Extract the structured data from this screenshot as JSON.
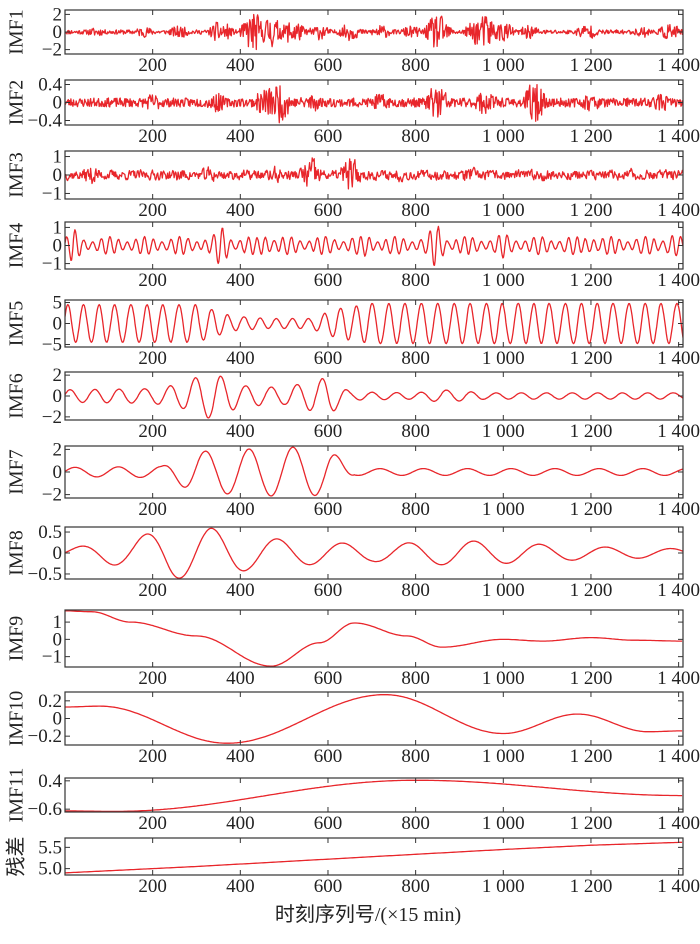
{
  "figure": {
    "xlabel": "时刻序列号/(×15 min)",
    "line_color": "#e8262b"
  },
  "chart_data": [
    {
      "type": "line",
      "ylabel": "IMF1",
      "xlim": [
        0,
        1410
      ],
      "ylim": [
        -2.5,
        2.5
      ],
      "xticks": [
        "200",
        "400",
        "600",
        "800",
        "1 000",
        "1 200",
        "1 400"
      ],
      "yticks": [
        {
          "v": 2,
          "label": "2"
        },
        {
          "v": 0,
          "label": "0"
        },
        {
          "v": -2,
          "label": "−2"
        }
      ],
      "signal": {
        "kind": "noise",
        "amp": 0.25,
        "seed": 11,
        "bursts": [
          [
            70,
            0.5
          ],
          [
            180,
            0.6
          ],
          [
            260,
            0.7
          ],
          [
            355,
            1.3
          ],
          [
            430,
            2.3
          ],
          [
            470,
            1.9
          ],
          [
            520,
            1.5
          ],
          [
            580,
            0.9
          ],
          [
            650,
            1.0
          ],
          [
            720,
            0.8
          ],
          [
            790,
            0.7
          ],
          [
            850,
            2.1
          ],
          [
            940,
            1.5
          ],
          [
            960,
            2.0
          ],
          [
            1000,
            1.2
          ],
          [
            1060,
            0.8
          ],
          [
            1190,
            0.9
          ],
          [
            1320,
            0.6
          ],
          [
            1380,
            1.0
          ]
        ]
      }
    },
    {
      "type": "line",
      "ylabel": "IMF2",
      "xlim": [
        0,
        1410
      ],
      "ylim": [
        -0.5,
        0.5
      ],
      "xticks": [
        "200",
        "400",
        "600",
        "800",
        "1 000",
        "1 200",
        "1 400"
      ],
      "yticks": [
        {
          "v": 0.4,
          "label": "0.4"
        },
        {
          "v": 0,
          "label": "0"
        },
        {
          "v": -0.4,
          "label": "−0.4"
        }
      ],
      "signal": {
        "kind": "noise",
        "amp": 0.1,
        "seed": 23,
        "bursts": [
          [
            200,
            0.2
          ],
          [
            345,
            0.22
          ],
          [
            460,
            0.38
          ],
          [
            490,
            0.45
          ],
          [
            560,
            0.25
          ],
          [
            720,
            0.2
          ],
          [
            850,
            0.45
          ],
          [
            960,
            0.3
          ],
          [
            1070,
            0.45
          ],
          [
            1200,
            0.2
          ],
          [
            1360,
            0.2
          ]
        ]
      }
    },
    {
      "type": "line",
      "ylabel": "IMF3",
      "xlim": [
        0,
        1410
      ],
      "ylim": [
        -1.3,
        1.3
      ],
      "xticks": [
        "200",
        "400",
        "600",
        "800",
        "1 000",
        "1 200",
        "1 400"
      ],
      "yticks": [
        {
          "v": 1,
          "label": "1"
        },
        {
          "v": 0,
          "label": "0"
        },
        {
          "v": -1,
          "label": "−1"
        }
      ],
      "signal": {
        "kind": "noise",
        "amp": 0.35,
        "seed": 37,
        "smooth": 0.35,
        "bursts": [
          [
            60,
            0.7
          ],
          [
            260,
            0.5
          ],
          [
            330,
            0.6
          ],
          [
            480,
            0.6
          ],
          [
            560,
            1.3
          ],
          [
            650,
            1.3
          ],
          [
            760,
            0.5
          ],
          [
            920,
            0.6
          ],
          [
            1100,
            0.5
          ],
          [
            1300,
            0.5
          ]
        ]
      }
    },
    {
      "type": "line",
      "ylabel": "IMF4",
      "xlim": [
        0,
        1410
      ],
      "ylim": [
        -1.3,
        1.3
      ],
      "xticks": [
        "200",
        "400",
        "600",
        "800",
        "1 000",
        "1 200",
        "1 400"
      ],
      "yticks": [
        {
          "v": 1,
          "label": "1"
        },
        {
          "v": 0,
          "label": "0"
        },
        {
          "v": -1,
          "label": "−1"
        }
      ],
      "signal": {
        "kind": "am",
        "period": 20,
        "amp": 0.5,
        "seed": 41,
        "bursts": [
          [
            20,
            0.9
          ],
          [
            360,
            1.2
          ],
          [
            460,
            0.9
          ],
          [
            690,
            0.7
          ],
          [
            850,
            1.3
          ],
          [
            1000,
            0.7
          ],
          [
            1200,
            0.8
          ],
          [
            1380,
            0.9
          ]
        ]
      }
    },
    {
      "type": "line",
      "ylabel": "IMF5",
      "xlim": [
        0,
        1410
      ],
      "ylim": [
        -5.6,
        5.6
      ],
      "xticks": [
        "200",
        "400",
        "600",
        "800",
        "1 000",
        "1 200",
        "1 400"
      ],
      "yticks": [
        {
          "v": 5,
          "label": "5"
        },
        {
          "v": 0,
          "label": "0"
        },
        {
          "v": -5,
          "label": "−5"
        }
      ],
      "signal": {
        "kind": "env",
        "period": 37,
        "seed": 53,
        "jitter": 0.3,
        "env": [
          [
            0,
            4.5
          ],
          [
            300,
            4.5
          ],
          [
            380,
            1.8
          ],
          [
            460,
            1.2
          ],
          [
            560,
            1.2
          ],
          [
            620,
            3.5
          ],
          [
            700,
            4.8
          ],
          [
            1410,
            4.8
          ]
        ]
      }
    },
    {
      "type": "line",
      "ylabel": "IMF6",
      "xlim": [
        0,
        1410
      ],
      "ylim": [
        -2.3,
        2.3
      ],
      "xticks": [
        "200",
        "400",
        "600",
        "800",
        "1 000",
        "1 200",
        "1 400"
      ],
      "yticks": [
        {
          "v": 2,
          "label": "2"
        },
        {
          "v": 0,
          "label": "0"
        },
        {
          "v": -2,
          "label": "−2"
        }
      ],
      "signal": {
        "kind": "env",
        "period": 58,
        "seed": 67,
        "jitter": 0.3,
        "env": [
          [
            0,
            0.6
          ],
          [
            200,
            0.7
          ],
          [
            270,
            1.2
          ],
          [
            310,
            2.0
          ],
          [
            340,
            2.2
          ],
          [
            400,
            1.0
          ],
          [
            500,
            0.8
          ],
          [
            600,
            1.8
          ],
          [
            650,
            0.4
          ],
          [
            800,
            0.3
          ],
          [
            860,
            0.6
          ],
          [
            960,
            0.3
          ],
          [
            1410,
            0.3
          ]
        ]
      }
    },
    {
      "type": "line",
      "ylabel": "IMF7",
      "xlim": [
        0,
        1410
      ],
      "ylim": [
        -2.3,
        2.3
      ],
      "xticks": [
        "200",
        "400",
        "600",
        "800",
        "1 000",
        "1 200",
        "1 400"
      ],
      "yticks": [
        {
          "v": 2,
          "label": "2"
        },
        {
          "v": 0,
          "label": "0"
        },
        {
          "v": -2,
          "label": "−2"
        }
      ],
      "signal": {
        "kind": "env",
        "period": 100,
        "seed": 79,
        "jitter": 0.15,
        "env": [
          [
            0,
            0.4
          ],
          [
            220,
            0.5
          ],
          [
            300,
            1.8
          ],
          [
            400,
            2.0
          ],
          [
            520,
            2.2
          ],
          [
            600,
            2.0
          ],
          [
            660,
            0.3
          ],
          [
            1410,
            0.3
          ]
        ]
      }
    },
    {
      "type": "line",
      "ylabel": "IMF8",
      "xlim": [
        0,
        1410
      ],
      "ylim": [
        -0.62,
        0.62
      ],
      "xticks": [
        "200",
        "400",
        "600",
        "800",
        "1 000",
        "1 200",
        "1 400"
      ],
      "yticks": [
        {
          "v": 0.5,
          "label": "0.5"
        },
        {
          "v": 0,
          "label": "0"
        },
        {
          "v": -0.5,
          "label": "−0.5"
        }
      ],
      "signal": {
        "kind": "env",
        "period": 150,
        "seed": 83,
        "jitter": 0.1,
        "env": [
          [
            0,
            0.1
          ],
          [
            150,
            0.35
          ],
          [
            240,
            0.6
          ],
          [
            330,
            0.6
          ],
          [
            420,
            0.4
          ],
          [
            520,
            0.3
          ],
          [
            700,
            0.2
          ],
          [
            900,
            0.3
          ],
          [
            1000,
            0.25
          ],
          [
            1200,
            0.15
          ],
          [
            1410,
            0.1
          ]
        ]
      }
    },
    {
      "type": "line",
      "ylabel": "IMF9",
      "xlim": [
        0,
        1410
      ],
      "ylim": [
        -1.6,
        1.7
      ],
      "xticks": [
        "200",
        "400",
        "600",
        "800",
        "1 000",
        "1 200",
        "1 400"
      ],
      "yticks": [
        {
          "v": 1,
          "label": "1"
        },
        {
          "v": 0,
          "label": "0"
        },
        {
          "v": -1,
          "label": "−1"
        }
      ],
      "signal": {
        "kind": "points",
        "interp": "cosine",
        "points": [
          [
            0,
            1.65
          ],
          [
            60,
            1.6
          ],
          [
            150,
            1.0
          ],
          [
            300,
            0.2
          ],
          [
            470,
            -1.55
          ],
          [
            580,
            -0.2
          ],
          [
            660,
            0.95
          ],
          [
            780,
            0.2
          ],
          [
            860,
            -0.45
          ],
          [
            1000,
            0.0
          ],
          [
            1090,
            -0.1
          ],
          [
            1200,
            0.1
          ],
          [
            1300,
            -0.05
          ],
          [
            1410,
            -0.1
          ]
        ]
      }
    },
    {
      "type": "line",
      "ylabel": "IMF10",
      "xlim": [
        0,
        1410
      ],
      "ylim": [
        -0.3,
        0.3
      ],
      "xticks": [
        "200",
        "400",
        "600",
        "800",
        "1 000",
        "1 200",
        "1 400"
      ],
      "yticks": [
        {
          "v": 0.2,
          "label": "0.2"
        },
        {
          "v": 0,
          "label": "0"
        },
        {
          "v": -0.2,
          "label": "−0.2"
        }
      ],
      "signal": {
        "kind": "points",
        "interp": "cosine",
        "points": [
          [
            0,
            0.13
          ],
          [
            80,
            0.14
          ],
          [
            370,
            -0.28
          ],
          [
            730,
            0.27
          ],
          [
            1000,
            -0.17
          ],
          [
            1170,
            0.05
          ],
          [
            1330,
            -0.15
          ],
          [
            1410,
            -0.14
          ]
        ]
      }
    },
    {
      "type": "line",
      "ylabel": "IMF11",
      "xlim": [
        0,
        1410
      ],
      "ylim": [
        -0.7,
        0.5
      ],
      "xticks": [
        "200",
        "400",
        "600",
        "800",
        "1 000",
        "1 200",
        "1 400"
      ],
      "yticks": [
        {
          "v": 0.4,
          "label": "0.4"
        },
        {
          "v": -0.6,
          "label": "−0.6"
        }
      ],
      "signal": {
        "kind": "points",
        "interp": "cosine",
        "points": [
          [
            0,
            -0.66
          ],
          [
            110,
            -0.68
          ],
          [
            800,
            0.42
          ],
          [
            1410,
            -0.12
          ]
        ]
      }
    },
    {
      "type": "line",
      "ylabel": "残差",
      "xlim": [
        0,
        1410
      ],
      "ylim": [
        4.85,
        5.72
      ],
      "xticks": [
        "200",
        "400",
        "600",
        "800",
        "1 000",
        "1 200",
        "1 400"
      ],
      "yticks": [
        {
          "v": 5.5,
          "label": "5.5"
        },
        {
          "v": 5.0,
          "label": "5.0"
        }
      ],
      "signal": {
        "kind": "points",
        "interp": "linear",
        "points": [
          [
            0,
            4.9
          ],
          [
            300,
            5.05
          ],
          [
            700,
            5.28
          ],
          [
            1000,
            5.45
          ],
          [
            1200,
            5.55
          ],
          [
            1410,
            5.62
          ]
        ]
      }
    }
  ]
}
